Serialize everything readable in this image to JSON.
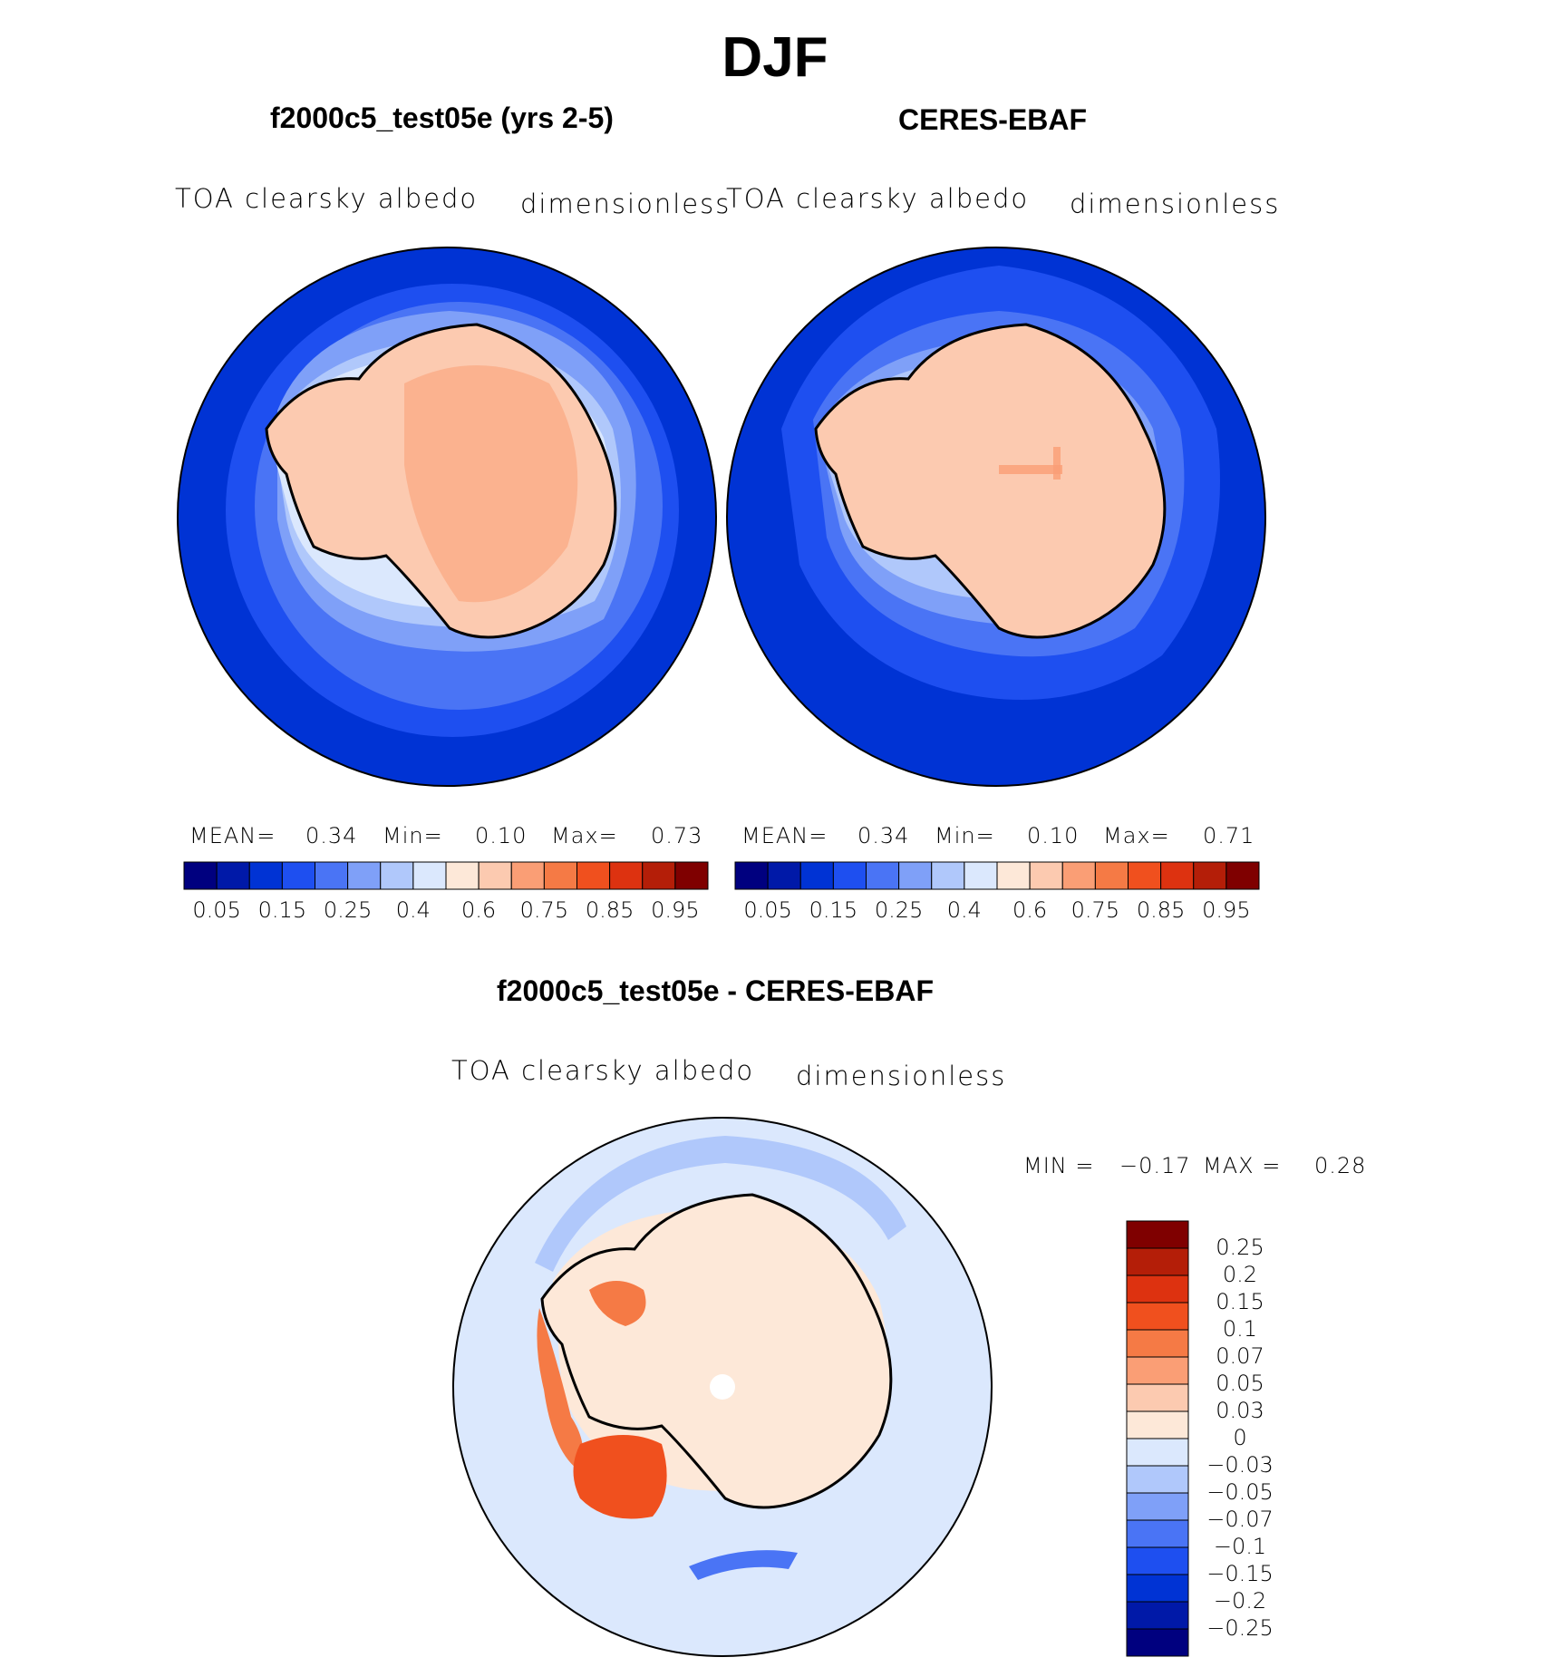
{
  "figure": {
    "title": "DJF"
  },
  "panels": {
    "model": {
      "title": "f2000c5_test05e (yrs 2-5)",
      "variable": "TOA clearsky albedo",
      "units": "dimensionless",
      "stats": {
        "mean_label": "MEAN=",
        "mean_value": "0.34",
        "min_label": "Min=",
        "min_value": "0.10",
        "max_label": "Max=",
        "max_value": "0.73"
      }
    },
    "obs": {
      "title": "CERES-EBAF",
      "variable": "TOA clearsky albedo",
      "units": "dimensionless",
      "stats": {
        "mean_label": "MEAN=",
        "mean_value": "0.34",
        "min_label": "Min=",
        "min_value": "0.10",
        "max_label": "Max=",
        "max_value": "0.71"
      }
    },
    "diff": {
      "title": "f2000c5_test05e - CERES-EBAF",
      "variable": "TOA clearsky albedo",
      "units": "dimensionless",
      "stats": {
        "min_label": "MIN =",
        "min_value": "−0.17",
        "max_label": "MAX =",
        "max_value": "0.28"
      }
    }
  },
  "colorbars": {
    "abs": {
      "colors": [
        "#00007f",
        "#0019a8",
        "#0033d4",
        "#1e4ff0",
        "#4a74f5",
        "#7fa0f8",
        "#b0c8fb",
        "#dbe8fd",
        "#fde8d8",
        "#fccab0",
        "#fa9e75",
        "#f57a45",
        "#f0501e",
        "#dd3210",
        "#b41e08",
        "#7f0000"
      ],
      "tick_labels": [
        "0.05",
        "0.15",
        "0.25",
        "0.4",
        "0.6",
        "0.75",
        "0.85",
        "0.95"
      ]
    },
    "diff": {
      "colors": [
        "#7f0000",
        "#b41e08",
        "#dd3210",
        "#f0501e",
        "#f57a45",
        "#fa9e75",
        "#fccab0",
        "#fde8d8",
        "#dbe8fd",
        "#b0c8fb",
        "#7fa0f8",
        "#4a74f5",
        "#1e4ff0",
        "#0033d4",
        "#0019a8",
        "#00007f"
      ],
      "tick_labels": [
        "0.25",
        "0.2",
        "0.15",
        "0.1",
        "0.07",
        "0.05",
        "0.03",
        "0",
        "−0.03",
        "−0.05",
        "−0.07",
        "−0.1",
        "−0.15",
        "−0.2",
        "−0.25"
      ]
    }
  },
  "map_colors": {
    "ocean_deep": "#0033d4",
    "ocean_mid": "#1e4ff0",
    "ocean_light": "#4a74f5",
    "ocean_pale": "#7fa0f8",
    "ice_edge": "#b0c8fb",
    "ice_pale": "#dbe8fd",
    "land_low": "#fde8d8",
    "land": "#fccab0",
    "land_high": "#fa9e75",
    "diff_bg": "#dbe8fd",
    "diff_pos": "#fde8d8",
    "diff_strong": "#f57a45",
    "diff_max": "#f0501e",
    "diff_neg": "#b0c8fb",
    "diff_neg_strong": "#4a74f5"
  }
}
